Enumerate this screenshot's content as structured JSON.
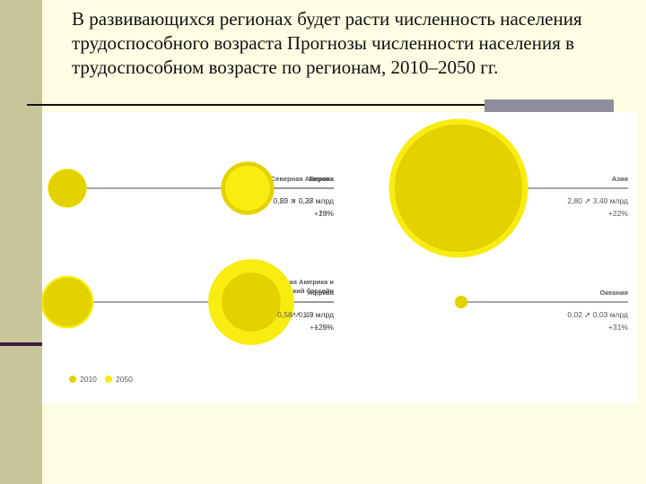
{
  "title": "В развивающихся регионах будет расти численность населения трудоспособного возраста Прогнозы численности населения в трудоспособном возрасте по регионам, 2010–2050 гг.",
  "colors": {
    "color_2010": "#e4d200",
    "color_2050": "#f8ec10",
    "outline": "#e0ce00"
  },
  "chart_data": {
    "type": "bubble",
    "title": "В развивающихся регионах будет расти численность населения трудоспособного возраста Прогнозы численности населения в трудоспособном возрасте по регионам, 2010–2050 гг.",
    "unit": "млрд",
    "legend": [
      {
        "label": "2010",
        "color": "#e4d200"
      },
      {
        "label": "2050",
        "color": "#f8ec10"
      }
    ],
    "regions": [
      {
        "name": "Северная Америка",
        "value_2010": 0.23,
        "value_2050": 0.27,
        "values_text": "0,23 ➚ 0,27 млрд",
        "change": "+16%"
      },
      {
        "name": "Европа",
        "value_2010": 0.5,
        "value_2050": 0.38,
        "values_text": "0,50 ➘ 0,38 млрд",
        "change": "−23%"
      },
      {
        "name": "Азия",
        "value_2010": 2.8,
        "value_2050": 3.4,
        "values_text": "2,80 ➚ 3,40 млрд",
        "change": "+22%"
      },
      {
        "name": "Латинская Америка и Карибский бассейн",
        "name_lines": [
          "Латинская Америка и",
          "Карибский бассейн"
        ],
        "value_2010": 0.39,
        "value_2050": 0.49,
        "values_text": "0,39 ➚ 0,49 млрд",
        "change": "+26%"
      },
      {
        "name": "Африка",
        "value_2010": 0.58,
        "value_2050": 1.3,
        "values_text": "0,58 ➚ 1,3 млрд",
        "change": "+125%"
      },
      {
        "name": "Океания",
        "value_2010": 0.02,
        "value_2050": 0.03,
        "values_text": "0,02 ➚ 0,03 млрд",
        "change": "+31%"
      }
    ]
  }
}
